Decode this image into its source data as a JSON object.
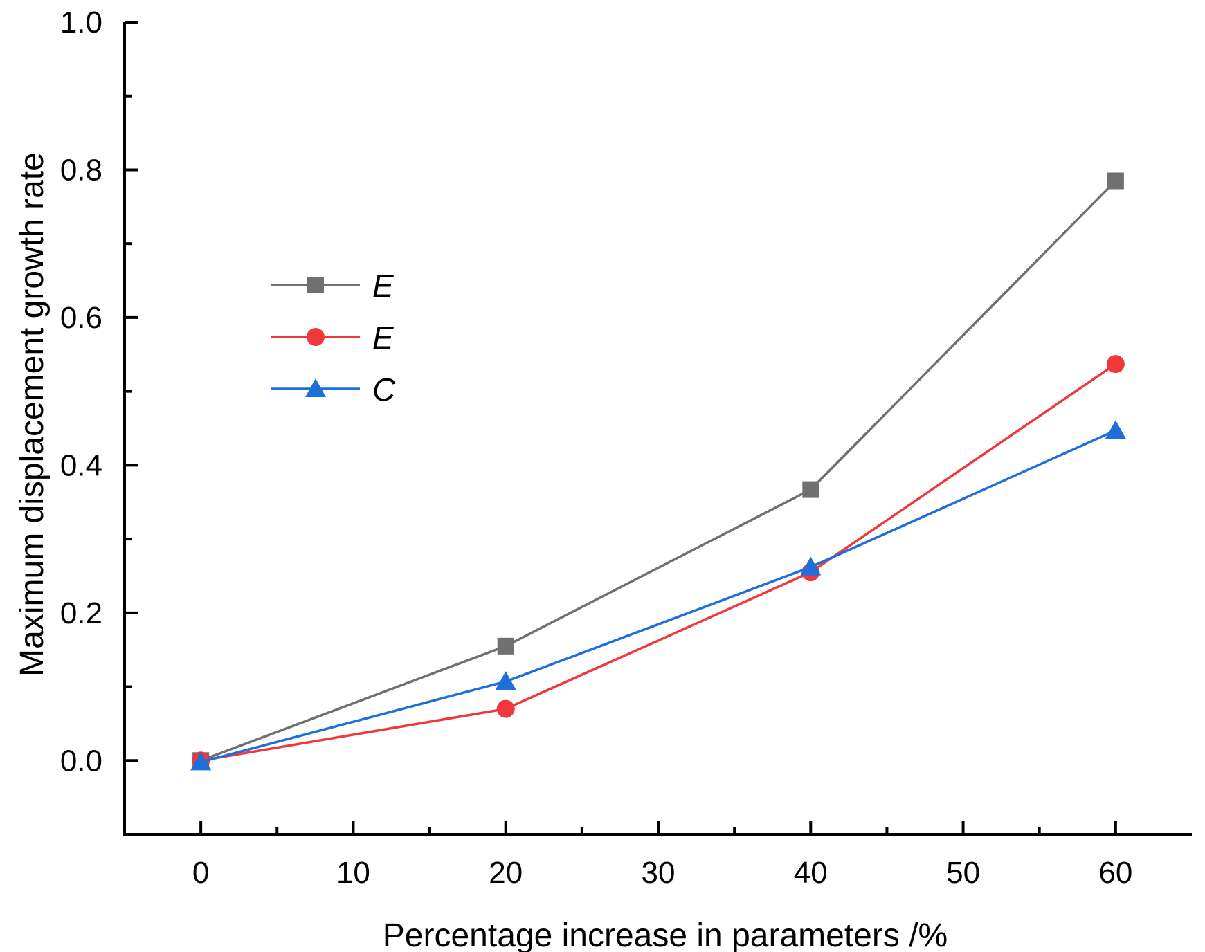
{
  "chart_data": {
    "type": "line",
    "xlabel": "Percentage increase in parameters /%",
    "ylabel": "Maximum displacement growth rate",
    "xlim": [
      -5,
      65
    ],
    "ylim": [
      -0.1,
      1.0
    ],
    "xticks": [
      0,
      10,
      20,
      30,
      40,
      50,
      60
    ],
    "xtick_labels": [
      "0",
      "10",
      "20",
      "30",
      "40",
      "50",
      "60"
    ],
    "yticks": [
      0.0,
      0.2,
      0.4,
      0.6,
      0.8,
      1.0
    ],
    "ytick_labels": [
      "0.0",
      "0.2",
      "0.4",
      "0.6",
      "0.8",
      "1.0"
    ],
    "legend_position": "upper-left",
    "series": [
      {
        "name": "E",
        "color": "#707070",
        "marker": "square",
        "x": [
          0,
          20,
          40,
          60
        ],
        "values": [
          0.0,
          0.155,
          0.367,
          0.785
        ]
      },
      {
        "name": "E",
        "color": "#f0373c",
        "marker": "circle",
        "x": [
          0,
          20,
          40,
          60
        ],
        "values": [
          0.0,
          0.07,
          0.255,
          0.537
        ]
      },
      {
        "name": "C",
        "color": "#1f6fd8",
        "marker": "triangle",
        "x": [
          0,
          20,
          40,
          60
        ],
        "values": [
          -0.002,
          0.107,
          0.262,
          0.447
        ]
      }
    ]
  }
}
